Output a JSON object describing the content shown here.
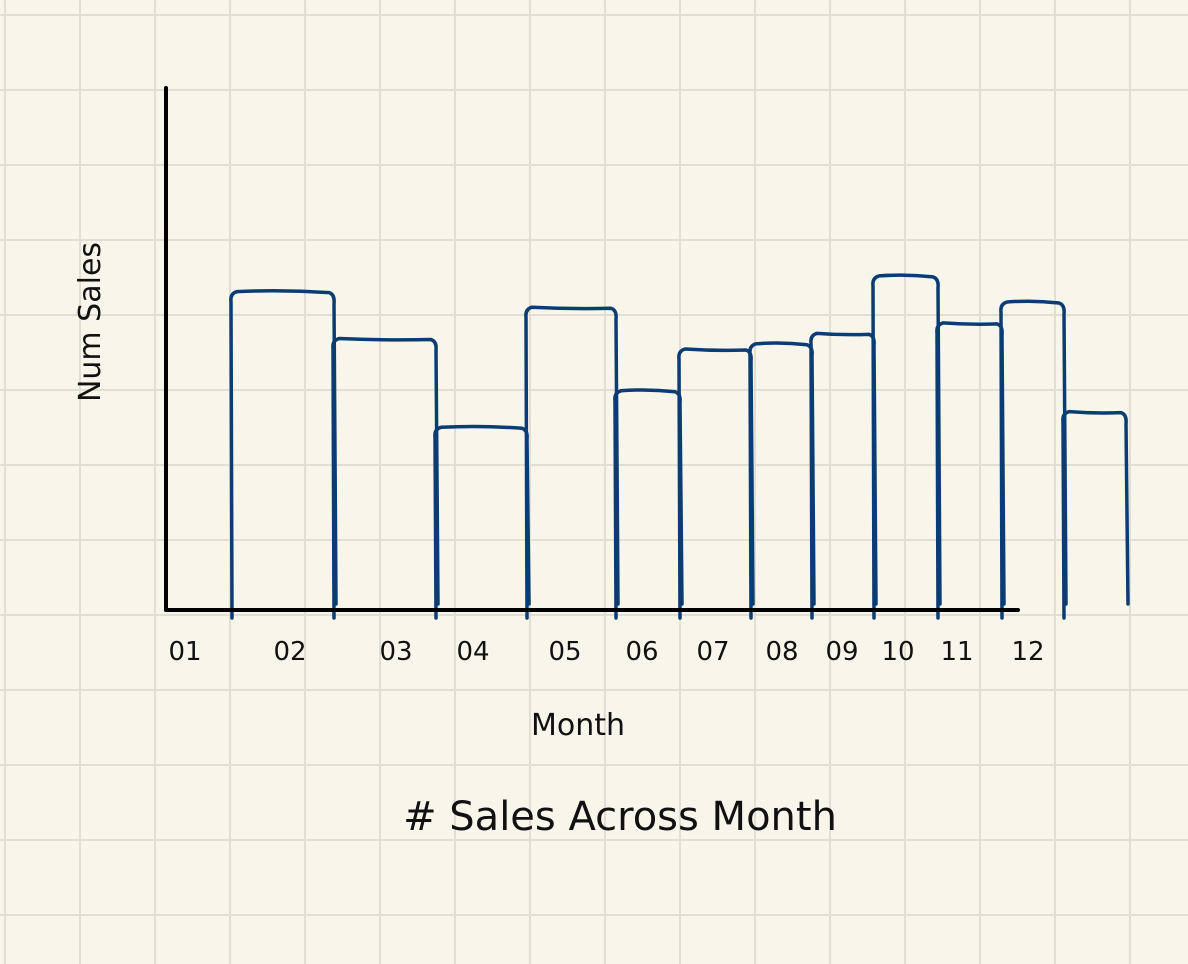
{
  "chart_data": {
    "type": "bar",
    "title": "# Sales Across Month",
    "xlabel": "Month",
    "ylabel": "Num Sales",
    "categories": [
      "01",
      "02",
      "03",
      "04",
      "05",
      "06",
      "07",
      "08",
      "09",
      "10",
      "11",
      "12"
    ],
    "values": [
      6.1,
      5.2,
      3.5,
      5.8,
      4.2,
      5.0,
      5.1,
      5.3,
      6.4,
      5.5,
      5.9,
      3.8
    ],
    "ylim": [
      0,
      10
    ],
    "grid": true,
    "legend": "none",
    "colors": {
      "bars": "#0b3d74",
      "axes": "#000000",
      "grid": "#e1dfd4",
      "background": "#f8f5ea"
    }
  }
}
